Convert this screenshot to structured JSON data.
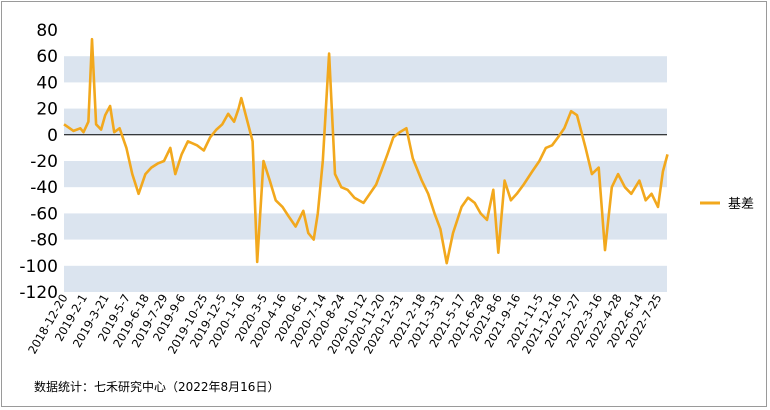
{
  "chart_data": {
    "type": "line",
    "title": "",
    "xlabel": "",
    "ylabel": "",
    "ylim": [
      -120,
      80
    ],
    "yticks": [
      80,
      60,
      40,
      20,
      0,
      -20,
      -40,
      -60,
      -80,
      -100,
      -120
    ],
    "band_color": "#dbe4ef",
    "series_color": "#f2a81d",
    "legend_position": "right",
    "x_tick_labels": [
      "2018-12-20",
      "2019-2-1",
      "2019-3-21",
      "2019-5-7",
      "2019-6-18",
      "2019-7-29",
      "2019-9-6",
      "2019-10-25",
      "2019-12-5",
      "2020-1-16",
      "2020-3-5",
      "2020-4-16",
      "2020-6-1",
      "2020-7-14",
      "2020-8-24",
      "2020-10-12",
      "2020-11-20",
      "2020-12-31",
      "2021-2-18",
      "2021-3-31",
      "2021-5-17",
      "2021-6-28",
      "2021-8-6",
      "2021-9-16",
      "2021-11-5",
      "2021-12-16",
      "2022-1-27",
      "2022-3-16",
      "2022-4-28",
      "2022-6-14",
      "2022-7-25"
    ],
    "series": [
      {
        "name": "基差",
        "x": [
          "2018-12-20",
          "2019-1-10",
          "2019-1-25",
          "2019-2-1",
          "2019-2-12",
          "2019-2-20",
          "2019-3-1",
          "2019-3-12",
          "2019-3-21",
          "2019-4-1",
          "2019-4-10",
          "2019-4-22",
          "2019-5-7",
          "2019-5-20",
          "2019-6-3",
          "2019-6-18",
          "2019-7-1",
          "2019-7-15",
          "2019-7-29",
          "2019-8-12",
          "2019-8-23",
          "2019-9-6",
          "2019-9-20",
          "2019-10-10",
          "2019-10-25",
          "2019-11-8",
          "2019-11-22",
          "2019-12-5",
          "2019-12-18",
          "2019-12-31",
          "2020-1-10",
          "2020-1-16",
          "2020-2-10",
          "2020-2-20",
          "2020-3-5",
          "2020-3-19",
          "2020-4-1",
          "2020-4-16",
          "2020-4-29",
          "2020-5-15",
          "2020-6-1",
          "2020-6-12",
          "2020-6-24",
          "2020-7-3",
          "2020-7-14",
          "2020-7-28",
          "2020-8-10",
          "2020-8-24",
          "2020-9-7",
          "2020-9-22",
          "2020-10-12",
          "2020-10-26",
          "2020-11-9",
          "2020-11-20",
          "2020-12-4",
          "2020-12-17",
          "2020-12-31",
          "2021-1-15",
          "2021-1-29",
          "2021-2-18",
          "2021-3-4",
          "2021-3-18",
          "2021-3-31",
          "2021-4-14",
          "2021-4-28",
          "2021-5-17",
          "2021-5-31",
          "2021-6-15",
          "2021-6-28",
          "2021-7-12",
          "2021-7-26",
          "2021-8-6",
          "2021-8-20",
          "2021-9-3",
          "2021-9-16",
          "2021-10-1",
          "2021-10-20",
          "2021-11-5",
          "2021-11-19",
          "2021-12-3",
          "2021-12-16",
          "2021-12-30",
          "2022-1-14",
          "2022-1-27",
          "2022-2-15",
          "2022-3-1",
          "2022-3-16",
          "2022-3-30",
          "2022-4-14",
          "2022-4-28",
          "2022-5-13",
          "2022-5-27",
          "2022-6-14",
          "2022-6-28",
          "2022-7-11",
          "2022-7-25",
          "2022-8-5",
          "2022-8-15"
        ],
        "values": [
          8,
          3,
          5,
          2,
          10,
          73,
          8,
          4,
          15,
          22,
          2,
          5,
          -10,
          -30,
          -45,
          -30,
          -25,
          -22,
          -20,
          -10,
          -30,
          -15,
          -5,
          -8,
          -12,
          -2,
          4,
          8,
          16,
          10,
          20,
          28,
          -5,
          -97,
          -20,
          -35,
          -50,
          -55,
          -62,
          -70,
          -58,
          -75,
          -80,
          -60,
          -20,
          62,
          -30,
          -40,
          -42,
          -48,
          -52,
          -45,
          -38,
          -28,
          -15,
          -2,
          2,
          5,
          -18,
          -35,
          -45,
          -60,
          -72,
          -98,
          -75,
          -55,
          -48,
          -52,
          -60,
          -65,
          -42,
          -90,
          -35,
          -50,
          -45,
          -38,
          -28,
          -20,
          -10,
          -8,
          -2,
          5,
          18,
          15,
          -10,
          -30,
          -25,
          -88,
          -40,
          -30,
          -40,
          -45,
          -35,
          -50,
          -45,
          -55,
          -28,
          -15
        ]
      }
    ]
  },
  "source": {
    "text": "数据统计：七禾研究中心（2022年8月16日）"
  }
}
